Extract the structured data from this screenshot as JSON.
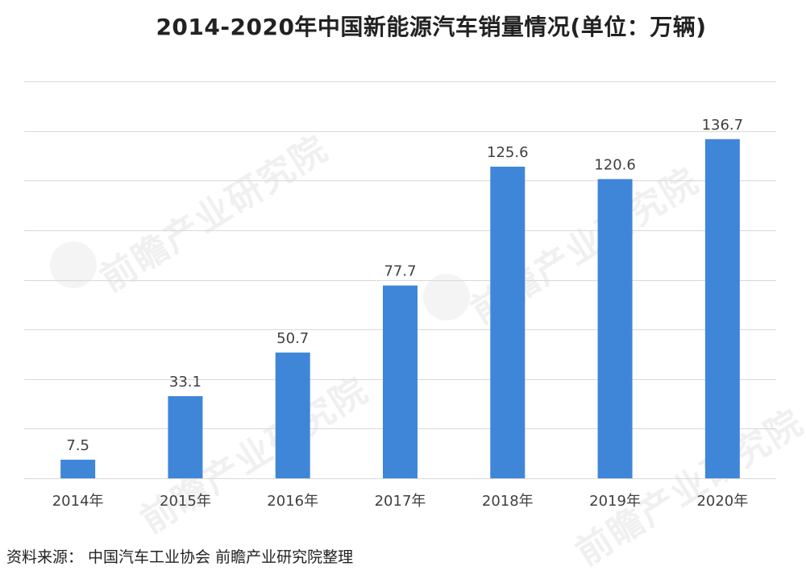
{
  "chart_data": {
    "type": "bar",
    "title": "2014-2020年中国新能源汽车销量情况(单位：万辆)",
    "categories": [
      "2014年",
      "2015年",
      "2016年",
      "2017年",
      "2018年",
      "2019年",
      "2020年"
    ],
    "values": [
      7.5,
      33.1,
      50.7,
      77.7,
      125.6,
      120.6,
      136.7
    ],
    "value_labels": [
      "7.5",
      "33.1",
      "50.7",
      "77.7",
      "125.6",
      "120.6",
      "136.7"
    ],
    "ylim": [
      0,
      160
    ],
    "xlabel": "",
    "ylabel": "",
    "grid": true,
    "bar_color": "#3f86d9",
    "grid_color": "#d9d9d9"
  },
  "source_note": "资料来源：  中国汽车工业协会 前瞻产业研究院整理",
  "watermark": {
    "text": "前瞻产业研究院"
  }
}
